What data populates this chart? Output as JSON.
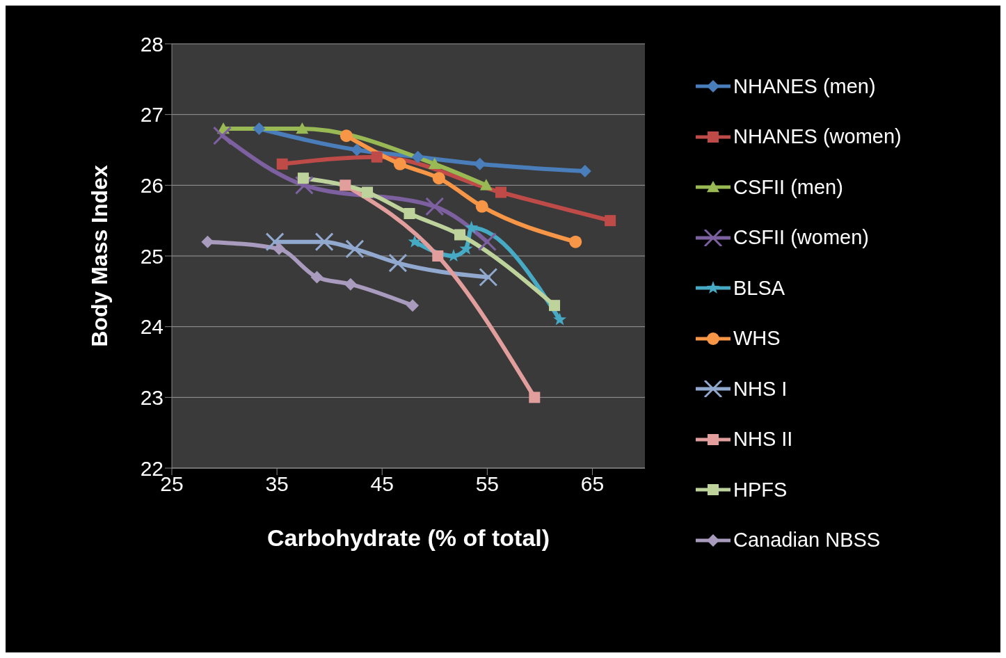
{
  "chart_data": {
    "type": "line",
    "xlabel": "Carbohydrate (% of total)",
    "ylabel": "Body Mass Index",
    "xlim": [
      25,
      70
    ],
    "xticks": [
      25,
      35,
      45,
      55,
      65
    ],
    "ylim": [
      22,
      28
    ],
    "yticks": [
      22,
      23,
      24,
      25,
      26,
      27,
      28
    ],
    "grid": "y",
    "legend": "right",
    "line_style": "solid",
    "series": [
      {
        "name": "NHANES (men)",
        "color": "#4a7ebb",
        "marker": "diamond",
        "x": [
          33.3,
          42.6,
          48.4,
          54.3,
          64.3
        ],
        "values": [
          26.8,
          26.5,
          26.4,
          26.3,
          26.2
        ]
      },
      {
        "name": "NHANES (women)",
        "color": "#be4b48",
        "marker": "square",
        "x": [
          35.5,
          44.5,
          56.3,
          66.7
        ],
        "values": [
          26.3,
          26.4,
          25.9,
          25.5
        ]
      },
      {
        "name": "CSFII (men)",
        "color": "#98b954",
        "marker": "triangle",
        "x": [
          29.9,
          37.4,
          50.0,
          54.9
        ],
        "values": [
          26.8,
          26.8,
          26.3,
          26.0
        ]
      },
      {
        "name": "CSFII (women)",
        "color": "#7d60a0",
        "marker": "cross",
        "x": [
          29.8,
          37.6,
          50.0,
          55.0
        ],
        "values": [
          26.7,
          26.0,
          25.7,
          25.2
        ]
      },
      {
        "name": "BLSA",
        "color": "#46aac5",
        "marker": "star",
        "x": [
          48.1,
          51.8,
          53.0,
          53.5,
          61.9
        ],
        "values": [
          25.2,
          25.0,
          25.1,
          25.4,
          24.1
        ]
      },
      {
        "name": "WHS",
        "color": "#f79646",
        "marker": "circle",
        "x": [
          41.6,
          46.7,
          50.4,
          54.5,
          63.4
        ],
        "values": [
          26.7,
          26.3,
          26.1,
          25.7,
          25.2
        ]
      },
      {
        "name": "NHS I",
        "color": "#92a9cf",
        "marker": "cross",
        "x": [
          34.8,
          39.5,
          42.4,
          46.5,
          55.1
        ],
        "values": [
          25.2,
          25.2,
          25.1,
          24.9,
          24.7
        ]
      },
      {
        "name": "NHS II",
        "color": "#e29e9c",
        "marker": "square",
        "x": [
          41.5,
          50.3,
          59.5
        ],
        "values": [
          26.0,
          25.0,
          23.0
        ]
      },
      {
        "name": "HPFS",
        "color": "#bdd39b",
        "marker": "square",
        "x": [
          37.5,
          43.6,
          47.6,
          52.4,
          61.4
        ],
        "values": [
          26.1,
          25.9,
          25.6,
          25.3,
          24.3
        ]
      },
      {
        "name": "Canadian NBSS",
        "color": "#a99bbd",
        "marker": "diamond",
        "x": [
          28.4,
          35.2,
          38.8,
          42.0,
          47.9
        ],
        "values": [
          25.2,
          25.1,
          24.7,
          24.6,
          24.3
        ]
      }
    ]
  }
}
